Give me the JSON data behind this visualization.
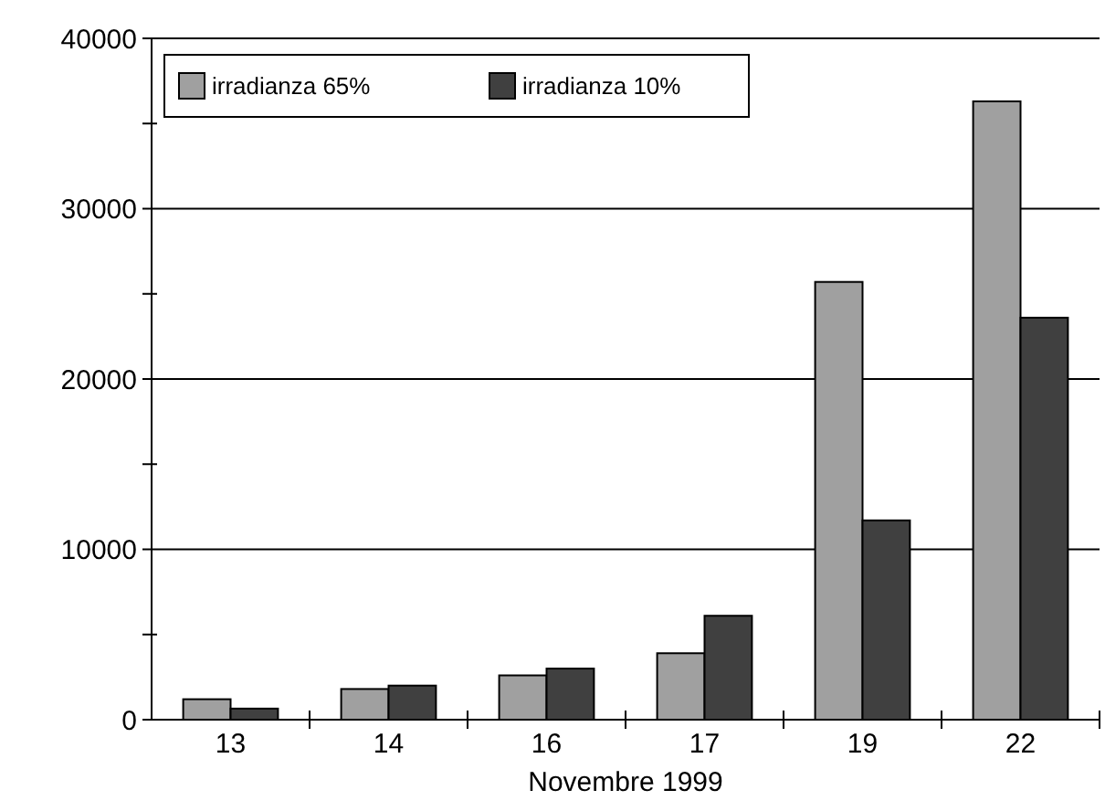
{
  "chart_data": {
    "type": "bar",
    "xlabel": "Novembre 1999",
    "categories": [
      "13",
      "14",
      "16",
      "17",
      "19",
      "22"
    ],
    "series": [
      {
        "name": "irradianza 65%",
        "color": "#a0a0a0",
        "values": [
          1200,
          1800,
          2600,
          3900,
          25700,
          36300
        ]
      },
      {
        "name": "irradianza 10%",
        "color": "#404040",
        "values": [
          650,
          2000,
          3000,
          6100,
          11700,
          23600
        ]
      }
    ],
    "ylim": [
      0,
      40000
    ],
    "yticks": [
      0,
      {
        "value": 5000,
        "label": null
      },
      10000,
      {
        "value": 15000,
        "label": null
      },
      20000,
      {
        "value": 25000,
        "label": null
      },
      30000,
      {
        "value": 35000,
        "label": null
      },
      40000
    ],
    "grid": "y",
    "legend": "top left"
  }
}
